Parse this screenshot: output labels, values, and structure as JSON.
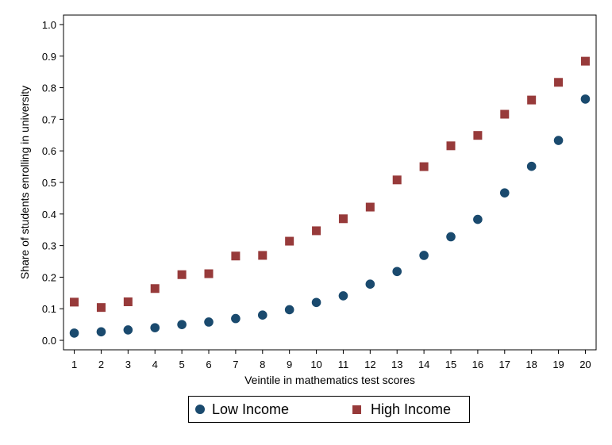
{
  "chart_data": {
    "type": "scatter",
    "xlabel": "Veintile in mathematics test scores",
    "ylabel": "Share of students enrolling in university",
    "x": [
      1,
      2,
      3,
      4,
      5,
      6,
      7,
      8,
      9,
      10,
      11,
      12,
      13,
      14,
      15,
      16,
      17,
      18,
      19,
      20
    ],
    "xlim": [
      0.6,
      20.4
    ],
    "ylim": [
      -0.03,
      1.03
    ],
    "yticks": [
      0.0,
      0.1,
      0.2,
      0.3,
      0.4,
      0.5,
      0.6,
      0.7,
      0.8,
      0.9,
      1.0
    ],
    "ytick_labels": [
      "0.0",
      "0.1",
      "0.2",
      "0.3",
      "0.4",
      "0.5",
      "0.6",
      "0.7",
      "0.8",
      "0.9",
      "1.0"
    ],
    "xtick_labels": [
      "1",
      "2",
      "3",
      "4",
      "5",
      "6",
      "7",
      "8",
      "9",
      "10",
      "11",
      "12",
      "13",
      "14",
      "15",
      "16",
      "17",
      "18",
      "19",
      "20"
    ],
    "grid": false,
    "legend_position": "bottom",
    "series": [
      {
        "name": "Low Income",
        "marker": "circle",
        "color": "#1a4a6e",
        "values": [
          0.023,
          0.027,
          0.033,
          0.04,
          0.05,
          0.058,
          0.069,
          0.08,
          0.097,
          0.12,
          0.141,
          0.178,
          0.218,
          0.269,
          0.328,
          0.383,
          0.467,
          0.551,
          0.633,
          0.764
        ]
      },
      {
        "name": "High Income",
        "marker": "square",
        "color": "#973a3a",
        "values": [
          0.121,
          0.104,
          0.122,
          0.164,
          0.208,
          0.211,
          0.267,
          0.269,
          0.314,
          0.347,
          0.385,
          0.422,
          0.508,
          0.55,
          0.616,
          0.649,
          0.716,
          0.761,
          0.817,
          0.884
        ]
      }
    ]
  }
}
